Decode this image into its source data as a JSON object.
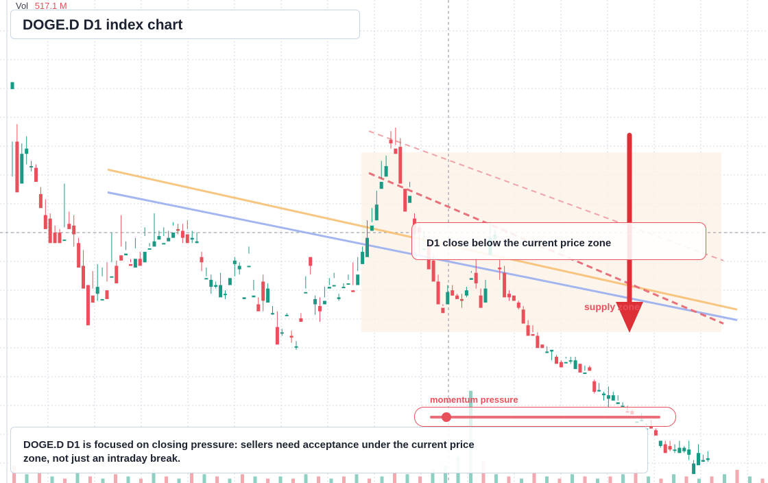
{
  "header": {
    "vol_label": "Vol",
    "vol_value": "517.1 M",
    "title": "DOGE.D D1 index chart"
  },
  "annotations": {
    "price_zone_note": "D1 close below the current price zone",
    "zone_label": "supply zone",
    "momentum_label": "momentum pressure",
    "momentum_level": 0.07,
    "summary": "DOGE.D D1 is focused on closing pressure: sellers need acceptance under the current price zone, not just an intraday break."
  },
  "colors": {
    "up": "#1a9a85",
    "down": "#e8505b",
    "grid": "#d3d9e2",
    "yellow_line": "#f7c074",
    "blue_line": "#9aaff0",
    "arrow": "#dd2f36",
    "zone_fill": "#fdf1e7",
    "volume_up": "#8fd0c3",
    "volume_down": "#f2aab0"
  },
  "chart_data": {
    "type": "candlestick",
    "title": "DOGE.D D1 index chart",
    "xlabel": "",
    "ylabel": "",
    "candles": [
      [
        82,
        86,
        52,
        32
      ],
      [
        52,
        23,
        25,
        62
      ],
      [
        28,
        45,
        30,
        51
      ],
      [
        45,
        48,
        39,
        55
      ],
      [
        38,
        38,
        35,
        41
      ],
      [
        37,
        29,
        30,
        39
      ],
      [
        22,
        14,
        18,
        26
      ],
      [
        10,
        2,
        5,
        19
      ],
      [
        8,
        -6,
        -4,
        11
      ],
      [
        0,
        -6,
        -4,
        4
      ],
      [
        0,
        -6,
        -4,
        2
      ],
      [
        -4,
        -4,
        3,
        28
      ],
      [
        5,
        2,
        3,
        12
      ],
      [
        4,
        -1,
        -8,
        10
      ],
      [
        -6,
        -20,
        -18,
        -3
      ],
      [
        -19,
        -32,
        -30,
        -10
      ],
      [
        -30,
        -53,
        -53,
        -48
      ],
      [
        -36,
        -40,
        -32,
        -22
      ],
      [
        -35,
        -31,
        -39,
        -18
      ],
      [
        -38,
        -38,
        -25,
        -20
      ],
      [
        -33,
        -38,
        -28,
        -17
      ],
      [
        -25,
        -25,
        -17,
        0
      ],
      [
        -19,
        -29,
        -29,
        -16
      ],
      [
        -13,
        -16,
        -8,
        10
      ],
      [
        -13,
        -12,
        -10,
        -5
      ],
      [
        -18,
        -19,
        -17,
        -15
      ],
      [
        -20,
        -15,
        -9,
        -3
      ],
      [
        -15,
        -19,
        -16,
        -11
      ],
      [
        -17,
        -11,
        -2,
        3
      ],
      [
        -9,
        -9,
        -8,
        -6
      ],
      [
        -8,
        -5,
        -8,
        11
      ],
      [
        -4,
        -2,
        -4,
        1
      ],
      [
        -6,
        -6,
        -2,
        3
      ],
      [
        -5,
        -3,
        -3,
        1
      ],
      [
        -3,
        0,
        4,
        6
      ],
      [
        2,
        1,
        -1,
        5
      ],
      [
        1,
        -3,
        -6,
        5
      ],
      [
        -1,
        -6,
        2,
        7
      ],
      [
        -4,
        -3,
        -6,
        1
      ],
      [
        -6,
        -5,
        -6,
        0
      ],
      [
        -14,
        -17,
        -22,
        -11
      ],
      [
        -26,
        -26,
        -25,
        -20
      ],
      [
        -31,
        -27,
        -35,
        -24
      ],
      [
        -31,
        -30,
        -32,
        -28
      ],
      [
        -37,
        -30,
        -31,
        -23
      ],
      [
        -35,
        -35,
        -38,
        -33
      ],
      [
        -30,
        -26,
        -29,
        -26
      ],
      [
        -18,
        -16,
        -25,
        -14
      ],
      [
        -21,
        -19,
        -24,
        -17
      ],
      [
        -38,
        -37,
        -36,
        -36
      ],
      [
        -19,
        -19,
        -12,
        -8
      ],
      [
        -37,
        -36,
        -33,
        -27
      ],
      [
        -41,
        -45,
        -43,
        -37
      ],
      [
        -28,
        -39,
        -45,
        -24
      ],
      [
        -40,
        -32,
        -37,
        -29
      ],
      [
        -46,
        -46,
        -47,
        -42
      ],
      [
        -54,
        -64,
        -59,
        -45
      ],
      [
        -57,
        -57,
        -59,
        -55
      ],
      [
        -47,
        -47,
        -47,
        -46
      ],
      [
        -59,
        -60,
        -63,
        -56
      ],
      [
        -65,
        -65,
        -67,
        -62
      ],
      [
        -49,
        -51,
        -51,
        -46
      ],
      [
        -34,
        -34,
        -32,
        -25
      ],
      [
        -14,
        -19,
        -24,
        -14
      ],
      [
        -41,
        -38,
        -47,
        -36
      ],
      [
        -42,
        -45,
        -51,
        -37
      ],
      [
        -41,
        -39,
        -37,
        -31
      ],
      [
        -32,
        -31,
        -30,
        -26
      ],
      [
        -30,
        -30,
        -26,
        -23
      ],
      [
        -38,
        -37,
        -39,
        -35
      ],
      [
        -31,
        -31,
        -31,
        -29
      ],
      [
        -29,
        -29,
        -27,
        -24
      ],
      [
        -33,
        -34,
        -30,
        -17
      ],
      [
        -30,
        -24,
        -22,
        -14
      ],
      [
        -18,
        -11,
        -13,
        -8
      ],
      [
        -14,
        -3,
        -3,
        7
      ],
      [
        1,
        4,
        6,
        14
      ],
      [
        7,
        16,
        14,
        24
      ],
      [
        25,
        29,
        31,
        41
      ],
      [
        32,
        38,
        32,
        44
      ],
      [
        53,
        51,
        48,
        58
      ],
      [
        48,
        45,
        50,
        60
      ],
      [
        49,
        28,
        31,
        54
      ],
      [
        25,
        12,
        20,
        22
      ],
      [
        17,
        21,
        26,
        29
      ],
      [
        8,
        -1,
        -12,
        11
      ],
      [
        3,
        0,
        -13,
        6
      ],
      [
        -10,
        -9,
        -3,
        1
      ],
      [
        -4,
        -21,
        -19,
        -3
      ],
      [
        -16,
        -28,
        -25,
        -12
      ],
      [
        -28,
        -41,
        -38,
        -24
      ],
      [
        -43,
        -46,
        -42,
        -41
      ],
      [
        -41,
        -34,
        -38,
        -30
      ],
      [
        -33,
        -36,
        -36,
        -30
      ],
      [
        -36,
        -38,
        -38,
        -35
      ],
      [
        -38,
        -39,
        -43,
        -35
      ],
      [
        -36,
        -33,
        -37,
        -31
      ],
      [
        -27,
        -26,
        -23,
        -22
      ],
      [
        -23,
        -29,
        -32,
        -14
      ],
      [
        -36,
        -43,
        -42,
        -32
      ],
      [
        -40,
        -32,
        -40,
        -27
      ],
      [
        -13,
        -3,
        -8,
        6
      ],
      [
        -4,
        -1,
        -1,
        2
      ],
      [
        -20,
        -21,
        -27,
        -15
      ],
      [
        -23,
        -37,
        -32,
        -19
      ],
      [
        -35,
        -37,
        -39,
        -33
      ],
      [
        -36,
        -39,
        -38,
        -37
      ],
      [
        -40,
        -43,
        -44,
        -39
      ],
      [
        -44,
        -52,
        -51,
        -42
      ],
      [
        -53,
        -59,
        -56,
        -50
      ],
      [
        -58,
        -59,
        -57,
        -53
      ],
      [
        -59,
        -66,
        -63,
        -57
      ],
      [
        -64,
        -66,
        -65,
        -64
      ],
      [
        -68,
        -68,
        -69,
        -65
      ],
      [
        -68,
        -67,
        -73,
        -67
      ],
      [
        -71,
        -75,
        -73,
        -70
      ],
      [
        -74,
        -77,
        -76,
        -73
      ],
      [
        -74,
        -74,
        -72,
        -71
      ],
      [
        -73,
        -73,
        -75,
        -71
      ],
      [
        -78,
        -73,
        -75,
        -71
      ],
      [
        -75,
        -80,
        -79,
        -75
      ],
      [
        -80,
        -80,
        -79,
        -76
      ],
      [
        -77,
        -79,
        -78,
        -76
      ],
      [
        -85,
        -91,
        -92,
        -84
      ],
      [
        -90,
        -90,
        -91,
        -86
      ],
      [
        -93,
        -92,
        -96,
        -91
      ],
      [
        -95,
        -93,
        -100,
        -88
      ],
      [
        -96,
        -93,
        -96,
        -91
      ],
      [
        -98,
        -97,
        -96,
        -93
      ],
      [
        -99,
        -99,
        -99,
        -97
      ],
      [
        -102,
        -103,
        -103,
        -99
      ],
      [
        -102,
        -104,
        -104,
        -101
      ],
      [
        -108,
        -108,
        -106,
        -105
      ],
      [
        -107,
        -107,
        -108,
        -103
      ],
      [
        -112,
        -112,
        -110,
        -109
      ],
      [
        -111,
        -112,
        -112,
        -107
      ],
      [
        -113,
        -116,
        -114,
        -112
      ],
      [
        -122,
        -119,
        -123,
        -119
      ],
      [
        -121,
        -126,
        -126,
        -119
      ],
      [
        -122,
        -124,
        -125,
        -119
      ],
      [
        -124,
        -124,
        -126,
        -121
      ],
      [
        -126,
        -123,
        -124,
        -119
      ],
      [
        -125,
        -123,
        -126,
        -122
      ],
      [
        -127,
        -124,
        -130,
        -119
      ],
      [
        -138,
        -132,
        -134,
        -130
      ],
      [
        -133,
        -126,
        -130,
        -121
      ],
      [
        -131,
        -130,
        -131,
        -127
      ],
      [
        -130,
        -129,
        -131,
        -125
      ]
    ],
    "note": "candles are [open, close, low, high] in index units relative to the current price line (0)",
    "volume": [
      [
        8,
        "down"
      ],
      [
        4,
        "up"
      ],
      [
        6,
        "down"
      ],
      [
        3,
        "up"
      ],
      [
        2,
        "down"
      ],
      [
        5,
        "up"
      ],
      [
        3,
        "down"
      ],
      [
        2,
        "up"
      ],
      [
        4,
        "down"
      ],
      [
        3,
        "up"
      ],
      [
        2,
        "down"
      ],
      [
        6,
        "up"
      ],
      [
        3,
        "down"
      ],
      [
        2,
        "up"
      ],
      [
        5,
        "down"
      ],
      [
        4,
        "up"
      ],
      [
        3,
        "down"
      ],
      [
        2,
        "up"
      ],
      [
        4,
        "down"
      ],
      [
        3,
        "up"
      ],
      [
        2,
        "down"
      ],
      [
        3,
        "up"
      ],
      [
        2,
        "down"
      ],
      [
        4,
        "up"
      ],
      [
        3,
        "down"
      ],
      [
        2,
        "up"
      ],
      [
        3,
        "down"
      ],
      [
        4,
        "up"
      ],
      [
        2,
        "down"
      ],
      [
        3,
        "up"
      ],
      [
        5,
        "down"
      ],
      [
        4,
        "up"
      ],
      [
        3,
        "down"
      ],
      [
        6,
        "up"
      ],
      [
        8,
        "up"
      ],
      [
        12,
        "up"
      ],
      [
        42,
        "up"
      ],
      [
        10,
        "down"
      ],
      [
        4,
        "up"
      ],
      [
        3,
        "down"
      ],
      [
        2,
        "up"
      ],
      [
        5,
        "down"
      ],
      [
        3,
        "up"
      ],
      [
        2,
        "down"
      ],
      [
        4,
        "up"
      ],
      [
        3,
        "down"
      ],
      [
        2,
        "up"
      ],
      [
        3,
        "down"
      ],
      [
        4,
        "up"
      ],
      [
        6,
        "down"
      ],
      [
        3,
        "up"
      ],
      [
        2,
        "down"
      ],
      [
        4,
        "up"
      ],
      [
        3,
        "down"
      ],
      [
        2,
        "up"
      ],
      [
        3,
        "down"
      ],
      [
        4,
        "up"
      ],
      [
        6,
        "down"
      ],
      [
        3,
        "up"
      ],
      [
        2,
        "down"
      ]
    ],
    "lines": {
      "yellow": [
        [
          0,
          36
        ],
        [
          36,
          -44
        ]
      ],
      "blue": [
        [
          0,
          23
        ],
        [
          36,
          -50
        ]
      ],
      "red_dashed": [
        [
          30,
          34
        ],
        [
          40,
          -52
        ]
      ],
      "red_dashed_light": [
        [
          30,
          58
        ],
        [
          40,
          -16
        ]
      ]
    },
    "ylim": [
      -130,
      100
    ],
    "grid": "on"
  }
}
